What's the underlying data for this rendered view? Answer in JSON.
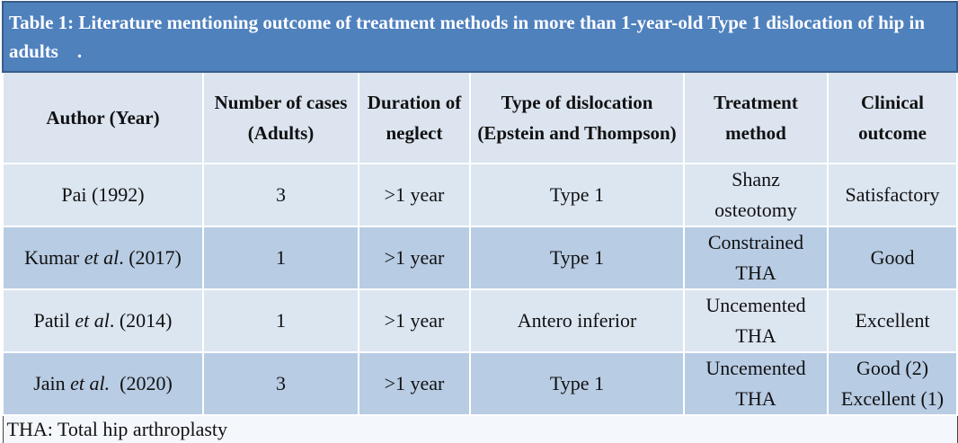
{
  "table": {
    "caption": "Table 1: Literature mentioning outcome of treatment methods in more than 1-year-old Type 1 dislocation of hip in adults    .",
    "header": [
      "Author (Year)",
      "Number of cases (Adults)",
      "Duration of neglect",
      "Type of dislocation (Epstein and Thompson)",
      "Treatment method",
      "Clinical outcome"
    ],
    "rows": [
      [
        [
          "Pai (1992)"
        ],
        "3",
        ">1 year",
        "Type 1",
        "Shanz osteotomy",
        "Satisfactory"
      ],
      [
        [
          "Kumar ",
          "et al",
          ". (2017)"
        ],
        "1",
        ">1 year",
        "Type 1",
        "Constrained THA",
        "Good"
      ],
      [
        [
          "Patil ",
          "et al",
          ". (2014)"
        ],
        "1",
        ">1 year",
        "Antero inferior",
        "Uncemented THA",
        "Excellent"
      ],
      [
        [
          "Jain ",
          "et al.",
          "  (2020)"
        ],
        "3",
        ">1 year",
        "Type 1",
        "Uncemented THA",
        "Good (2) Excellent (1)"
      ]
    ],
    "footnote": "THA: Total hip arthroplasty"
  }
}
